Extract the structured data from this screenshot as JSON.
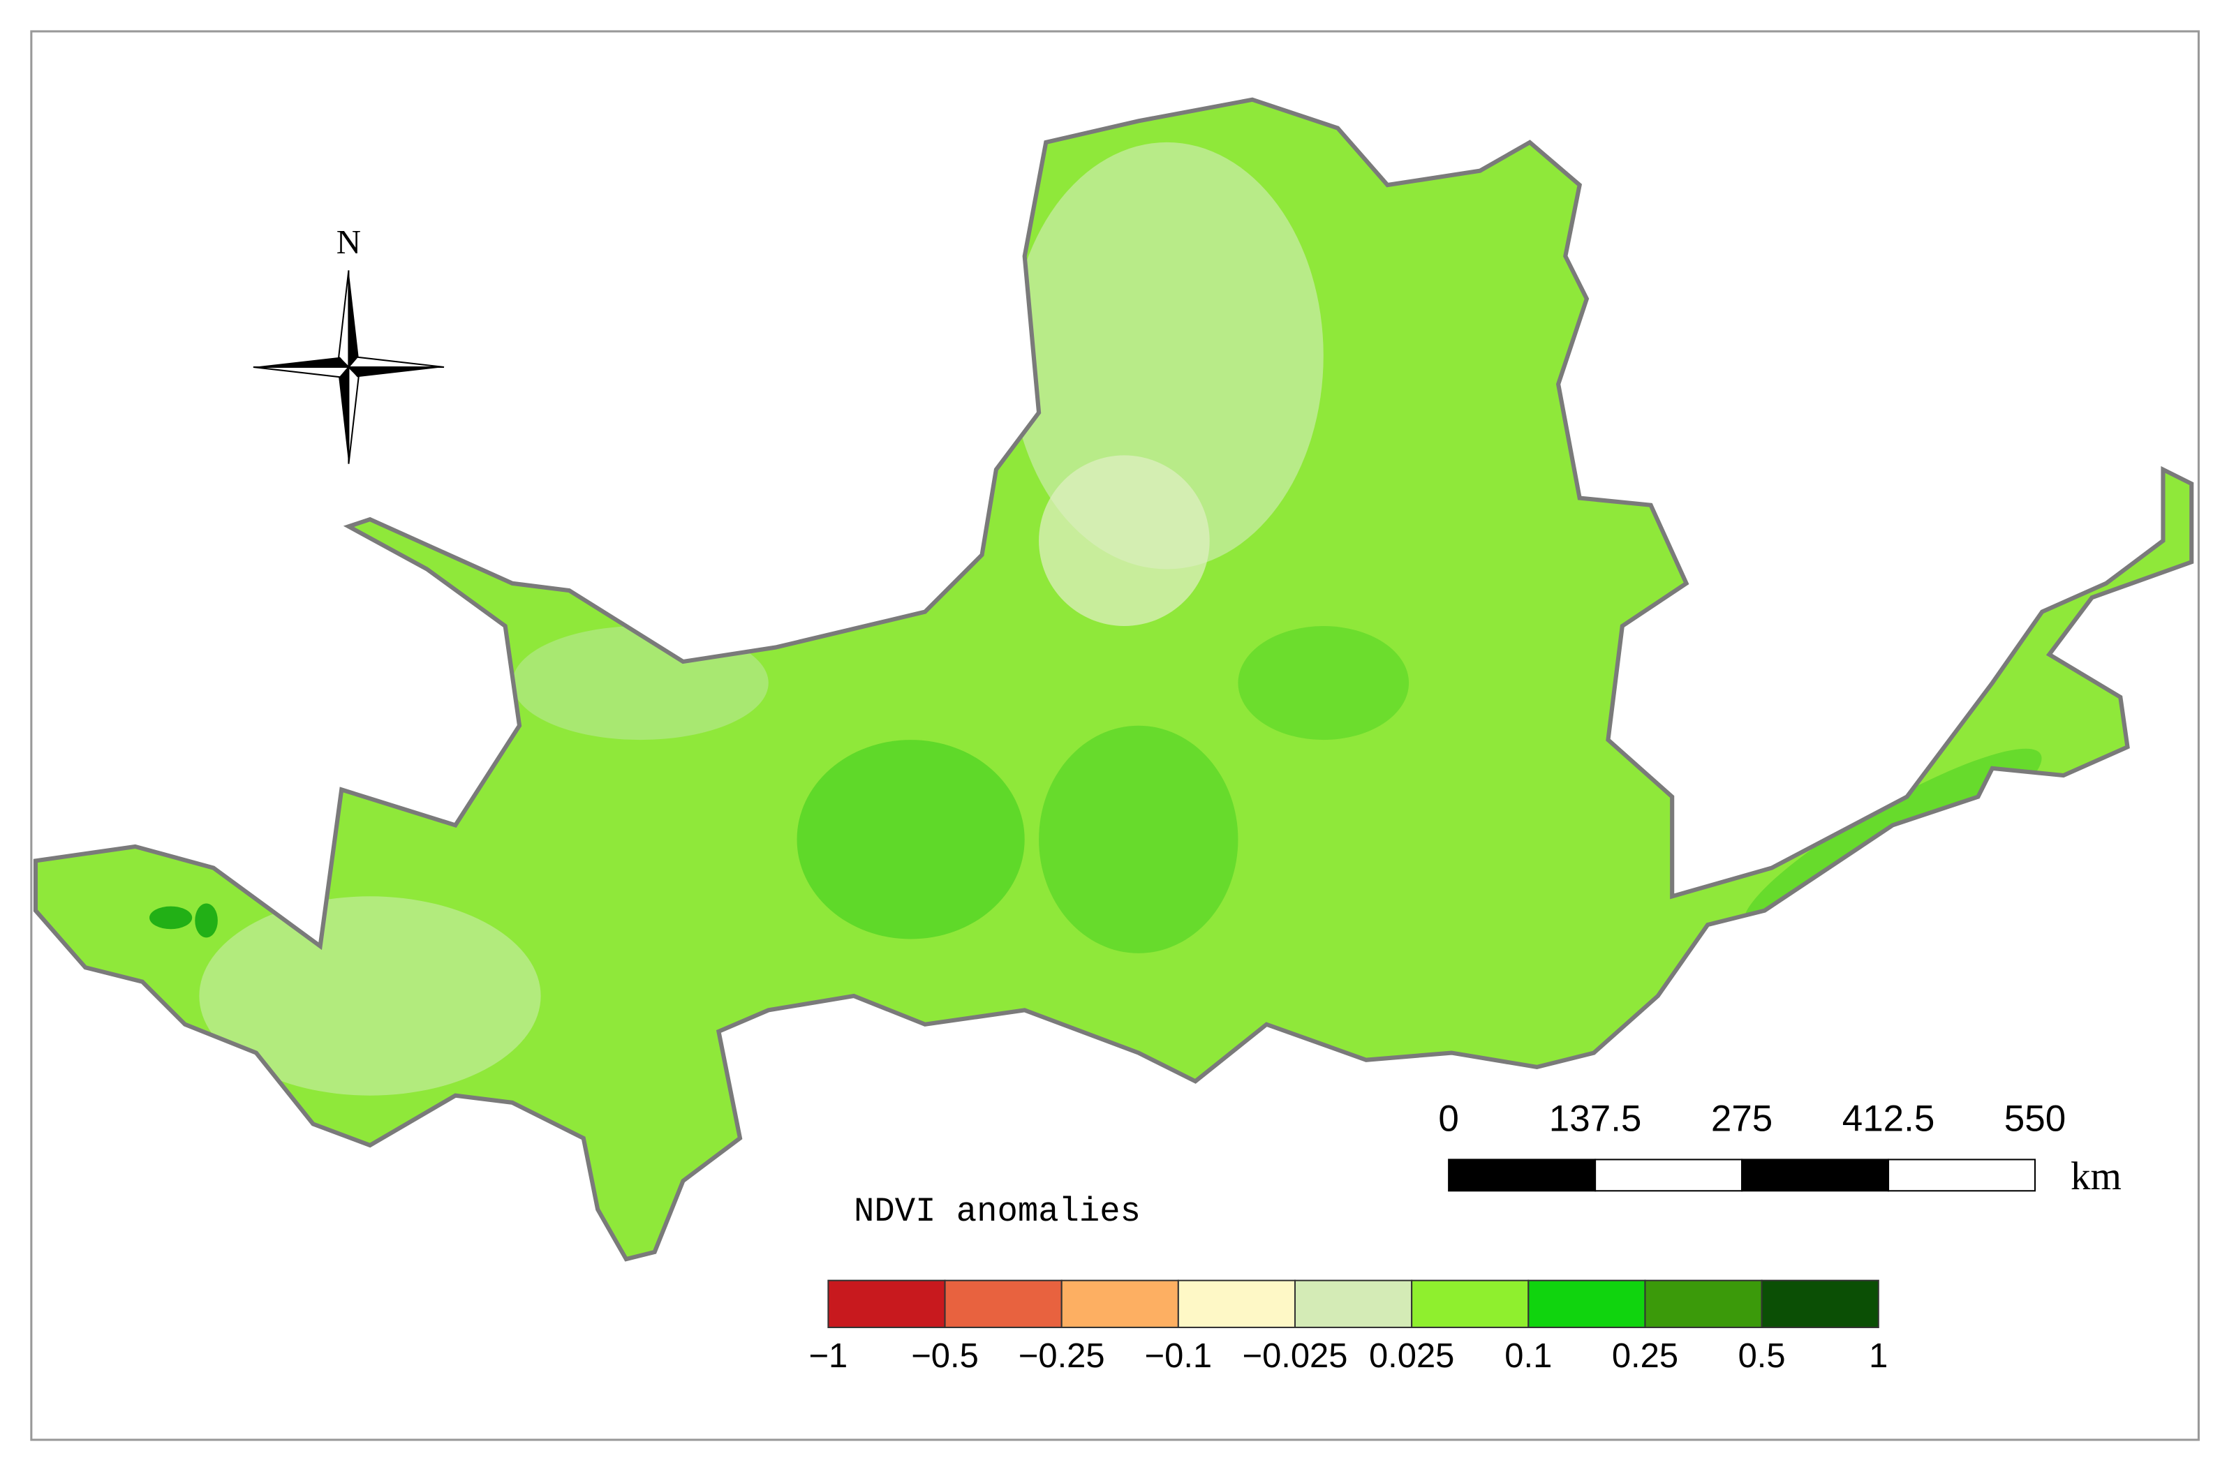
{
  "north_arrow": {
    "label": "N"
  },
  "scale_bar": {
    "labels": [
      "0",
      "137.5",
      "275",
      "412.5",
      "550"
    ],
    "unit": "km"
  },
  "legend": {
    "title": "NDVI anomalies",
    "breaks": [
      "−1",
      "−0.5",
      "−0.25",
      "−0.1",
      "−0.025",
      "0.025",
      "0.1",
      "0.25",
      "0.5",
      "1"
    ],
    "colors": [
      "#c8191e",
      "#e8623f",
      "#fdaf62",
      "#fef8c6",
      "#d4ebb6",
      "#8fef2e",
      "#10d40e",
      "#3b9a0a",
      "#0b4f05"
    ]
  }
}
